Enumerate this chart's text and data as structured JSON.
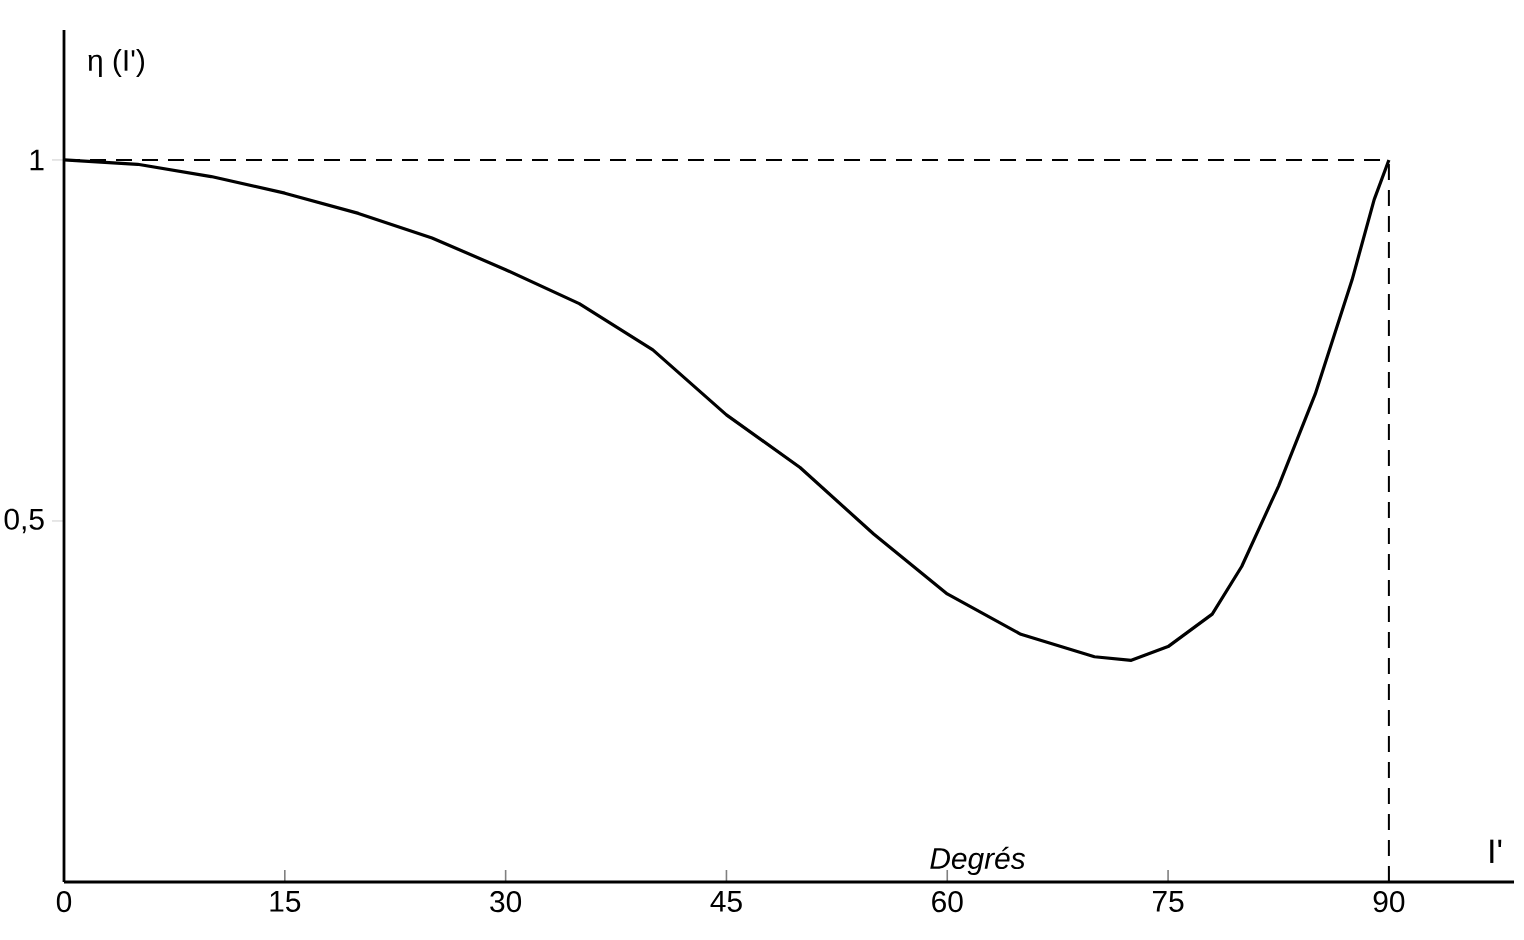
{
  "chart_data": {
    "type": "line",
    "ylabel": "η (I')",
    "xlabel": "I'",
    "annotations": [
      "Degrés"
    ],
    "x": [
      0,
      5,
      10,
      15,
      20,
      25,
      30,
      35,
      40,
      45,
      50,
      55,
      60,
      65,
      70,
      72.5,
      75,
      78,
      80,
      82.5,
      85,
      87.5,
      89,
      90
    ],
    "series": [
      {
        "color": "#000000",
        "values": [
          1,
          0.994,
          0.977,
          0.954,
          0.926,
          0.892,
          0.848,
          0.801,
          0.737,
          0.647,
          0.574,
          0.482,
          0.399,
          0.343,
          0.312,
          0.307,
          0.326,
          0.371,
          0.437,
          0.548,
          0.676,
          0.834,
          0.945,
          1
        ]
      }
    ],
    "xlim": [
      0,
      98.5
    ],
    "ylim": [
      0,
      1.18
    ],
    "xticks": [
      0,
      15,
      30,
      45,
      60,
      75,
      90
    ],
    "yticks": [
      {
        "value": 0.5,
        "label": "0,5"
      },
      1
    ],
    "ref_lines": [
      {
        "axis": "y",
        "value": 1,
        "line_style": "dashed"
      },
      {
        "axis": "x",
        "value": 90,
        "line_style": "dashed"
      }
    ],
    "marker": "none",
    "line_style": "solid"
  }
}
